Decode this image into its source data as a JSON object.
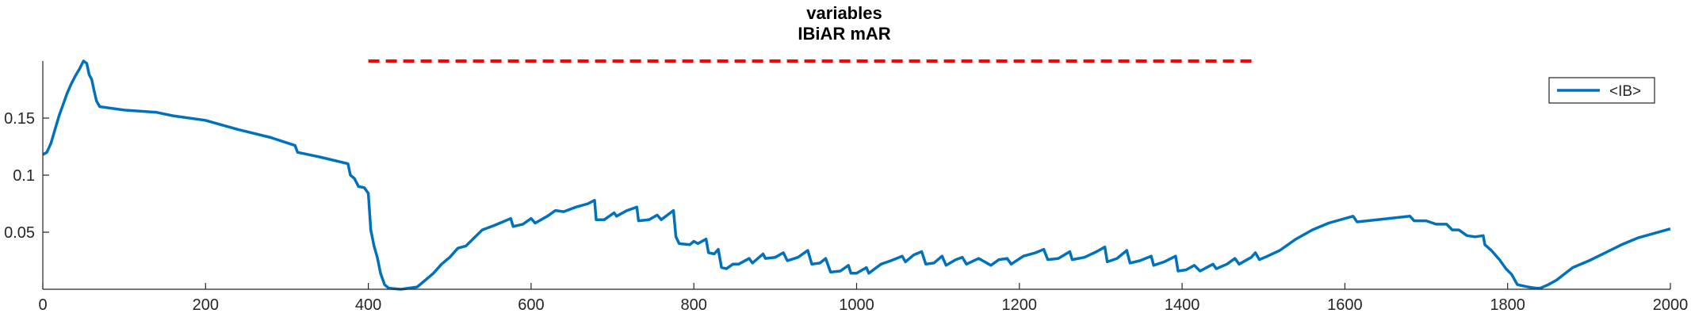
{
  "chart_data": {
    "type": "line",
    "title": [
      "variables",
      "IBiAR mAR"
    ],
    "xlabel": "",
    "ylabel": "",
    "xlim": [
      0,
      2000
    ],
    "ylim": [
      0,
      0.2
    ],
    "x_ticks": [
      0,
      200,
      400,
      600,
      800,
      1000,
      1200,
      1400,
      1600,
      1800,
      2000
    ],
    "x_tick_labels": [
      "0",
      "200",
      "400",
      "600",
      "800",
      "1000",
      "1200",
      "1400",
      "1600",
      "1800",
      "2000"
    ],
    "y_ticks": [
      0.05,
      0.1,
      0.15
    ],
    "y_tick_labels": [
      "0.05",
      "0.1",
      "0.15"
    ],
    "grid": false,
    "legend_position": "top-right",
    "series": [
      {
        "name": "<IB>",
        "style": "solid",
        "color": "#0072BD",
        "points": [
          [
            0,
            0.118
          ],
          [
            5,
            0.12
          ],
          [
            10,
            0.128
          ],
          [
            15,
            0.14
          ],
          [
            20,
            0.152
          ],
          [
            25,
            0.162
          ],
          [
            30,
            0.172
          ],
          [
            35,
            0.18
          ],
          [
            40,
            0.187
          ],
          [
            45,
            0.193
          ],
          [
            50,
            0.2
          ],
          [
            54,
            0.198
          ],
          [
            57,
            0.188
          ],
          [
            60,
            0.184
          ],
          [
            63,
            0.174
          ],
          [
            66,
            0.165
          ],
          [
            70,
            0.16
          ],
          [
            100,
            0.157
          ],
          [
            140,
            0.155
          ],
          [
            160,
            0.152
          ],
          [
            200,
            0.148
          ],
          [
            240,
            0.14
          ],
          [
            280,
            0.133
          ],
          [
            310,
            0.126
          ],
          [
            313,
            0.12
          ],
          [
            340,
            0.116
          ],
          [
            375,
            0.11
          ],
          [
            378,
            0.1
          ],
          [
            383,
            0.097
          ],
          [
            388,
            0.09
          ],
          [
            395,
            0.089
          ],
          [
            400,
            0.084
          ],
          [
            403,
            0.052
          ],
          [
            407,
            0.038
          ],
          [
            411,
            0.028
          ],
          [
            415,
            0.014
          ],
          [
            420,
            0.004
          ],
          [
            425,
            0.001
          ],
          [
            440,
            0.0
          ],
          [
            460,
            0.002
          ],
          [
            470,
            0.008
          ],
          [
            480,
            0.014
          ],
          [
            490,
            0.022
          ],
          [
            500,
            0.028
          ],
          [
            510,
            0.036
          ],
          [
            520,
            0.038
          ],
          [
            530,
            0.045
          ],
          [
            540,
            0.052
          ],
          [
            555,
            0.056
          ],
          [
            575,
            0.062
          ],
          [
            578,
            0.055
          ],
          [
            590,
            0.057
          ],
          [
            600,
            0.062
          ],
          [
            605,
            0.058
          ],
          [
            620,
            0.064
          ],
          [
            630,
            0.069
          ],
          [
            640,
            0.068
          ],
          [
            655,
            0.072
          ],
          [
            670,
            0.075
          ],
          [
            678,
            0.078
          ],
          [
            680,
            0.061
          ],
          [
            690,
            0.061
          ],
          [
            702,
            0.067
          ],
          [
            705,
            0.064
          ],
          [
            718,
            0.069
          ],
          [
            730,
            0.072
          ],
          [
            732,
            0.06
          ],
          [
            745,
            0.061
          ],
          [
            755,
            0.065
          ],
          [
            760,
            0.061
          ],
          [
            775,
            0.069
          ],
          [
            778,
            0.046
          ],
          [
            782,
            0.04
          ],
          [
            795,
            0.039
          ],
          [
            800,
            0.042
          ],
          [
            805,
            0.04
          ],
          [
            815,
            0.044
          ],
          [
            818,
            0.032
          ],
          [
            825,
            0.031
          ],
          [
            830,
            0.035
          ],
          [
            834,
            0.019
          ],
          [
            840,
            0.018
          ],
          [
            848,
            0.022
          ],
          [
            855,
            0.022
          ],
          [
            868,
            0.027
          ],
          [
            872,
            0.023
          ],
          [
            885,
            0.031
          ],
          [
            888,
            0.027
          ],
          [
            900,
            0.028
          ],
          [
            910,
            0.032
          ],
          [
            915,
            0.025
          ],
          [
            928,
            0.028
          ],
          [
            940,
            0.034
          ],
          [
            945,
            0.022
          ],
          [
            955,
            0.023
          ],
          [
            962,
            0.027
          ],
          [
            968,
            0.015
          ],
          [
            980,
            0.016
          ],
          [
            990,
            0.021
          ],
          [
            993,
            0.014
          ],
          [
            1000,
            0.014
          ],
          [
            1012,
            0.019
          ],
          [
            1015,
            0.014
          ],
          [
            1030,
            0.022
          ],
          [
            1042,
            0.025
          ],
          [
            1056,
            0.029
          ],
          [
            1060,
            0.024
          ],
          [
            1070,
            0.03
          ],
          [
            1080,
            0.033
          ],
          [
            1085,
            0.022
          ],
          [
            1095,
            0.023
          ],
          [
            1105,
            0.029
          ],
          [
            1110,
            0.021
          ],
          [
            1122,
            0.026
          ],
          [
            1130,
            0.028
          ],
          [
            1135,
            0.022
          ],
          [
            1150,
            0.027
          ],
          [
            1165,
            0.021
          ],
          [
            1175,
            0.026
          ],
          [
            1185,
            0.027
          ],
          [
            1190,
            0.022
          ],
          [
            1205,
            0.029
          ],
          [
            1220,
            0.032
          ],
          [
            1230,
            0.035
          ],
          [
            1235,
            0.026
          ],
          [
            1248,
            0.027
          ],
          [
            1262,
            0.033
          ],
          [
            1265,
            0.026
          ],
          [
            1280,
            0.028
          ],
          [
            1295,
            0.033
          ],
          [
            1305,
            0.037
          ],
          [
            1308,
            0.024
          ],
          [
            1320,
            0.027
          ],
          [
            1332,
            0.034
          ],
          [
            1336,
            0.023
          ],
          [
            1348,
            0.025
          ],
          [
            1362,
            0.029
          ],
          [
            1365,
            0.021
          ],
          [
            1378,
            0.024
          ],
          [
            1392,
            0.029
          ],
          [
            1395,
            0.016
          ],
          [
            1405,
            0.017
          ],
          [
            1415,
            0.021
          ],
          [
            1422,
            0.016
          ],
          [
            1438,
            0.022
          ],
          [
            1442,
            0.018
          ],
          [
            1455,
            0.022
          ],
          [
            1465,
            0.027
          ],
          [
            1470,
            0.022
          ],
          [
            1485,
            0.028
          ],
          [
            1490,
            0.032
          ],
          [
            1495,
            0.026
          ],
          [
            1505,
            0.029
          ],
          [
            1520,
            0.034
          ],
          [
            1540,
            0.044
          ],
          [
            1560,
            0.052
          ],
          [
            1580,
            0.058
          ],
          [
            1610,
            0.064
          ],
          [
            1615,
            0.059
          ],
          [
            1640,
            0.061
          ],
          [
            1680,
            0.064
          ],
          [
            1685,
            0.06
          ],
          [
            1700,
            0.06
          ],
          [
            1712,
            0.057
          ],
          [
            1725,
            0.057
          ],
          [
            1732,
            0.052
          ],
          [
            1740,
            0.052
          ],
          [
            1750,
            0.047
          ],
          [
            1760,
            0.046
          ],
          [
            1770,
            0.047
          ],
          [
            1772,
            0.039
          ],
          [
            1780,
            0.034
          ],
          [
            1790,
            0.026
          ],
          [
            1798,
            0.018
          ],
          [
            1805,
            0.013
          ],
          [
            1812,
            0.004
          ],
          [
            1825,
            0.002
          ],
          [
            1835,
            0.001
          ],
          [
            1840,
            0.001
          ],
          [
            1850,
            0.004
          ],
          [
            1860,
            0.008
          ],
          [
            1880,
            0.019
          ],
          [
            1900,
            0.025
          ],
          [
            1920,
            0.032
          ],
          [
            1940,
            0.039
          ],
          [
            1960,
            0.045
          ],
          [
            1980,
            0.049
          ],
          [
            2000,
            0.053
          ]
        ]
      },
      {
        "name": "",
        "style": "dashed",
        "color": "#FF0000",
        "points": [
          [
            400,
            0.2
          ],
          [
            1490,
            0.2
          ]
        ]
      }
    ]
  }
}
